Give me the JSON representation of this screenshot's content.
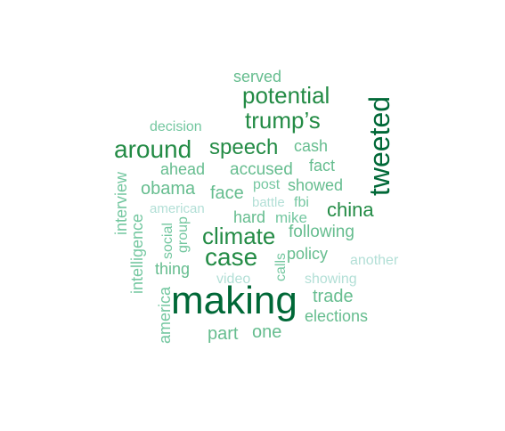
{
  "word_cloud": {
    "words": [
      {
        "text": "making",
        "size": 5,
        "color": "#006837"
      },
      {
        "text": "tweeted",
        "size": 4,
        "color": "#006837"
      },
      {
        "text": "potential",
        "size": 3,
        "color": "#238b45"
      },
      {
        "text": "trump’s",
        "size": 3,
        "color": "#238b45"
      },
      {
        "text": "around",
        "size": 3,
        "color": "#238b45"
      },
      {
        "text": "speech",
        "size": 3,
        "color": "#238b45"
      },
      {
        "text": "case",
        "size": 3,
        "color": "#238b45"
      },
      {
        "text": "climate",
        "size": 3,
        "color": "#238b45"
      },
      {
        "text": "china",
        "size": 2,
        "color": "#238b45"
      },
      {
        "text": "served",
        "size": 2,
        "color": "#66bd8f"
      },
      {
        "text": "decision",
        "size": 1,
        "color": "#74c7a0"
      },
      {
        "text": "cash",
        "size": 2,
        "color": "#66bd8f"
      },
      {
        "text": "ahead",
        "size": 2,
        "color": "#66bd8f"
      },
      {
        "text": "accused",
        "size": 2,
        "color": "#66bd8f"
      },
      {
        "text": "fact",
        "size": 2,
        "color": "#66bd8f"
      },
      {
        "text": "interview",
        "size": 2,
        "color": "#74c7a0"
      },
      {
        "text": "obama",
        "size": 2,
        "color": "#66bd8f"
      },
      {
        "text": "face",
        "size": 2,
        "color": "#66bd8f"
      },
      {
        "text": "post",
        "size": 1,
        "color": "#74c7a0"
      },
      {
        "text": "showed",
        "size": 2,
        "color": "#66bd8f"
      },
      {
        "text": "american",
        "size": 1,
        "color": "#b2dfd6"
      },
      {
        "text": "battle",
        "size": 1,
        "color": "#b2dfd6"
      },
      {
        "text": "fbi",
        "size": 1,
        "color": "#74c7a0"
      },
      {
        "text": "intelligence",
        "size": 2,
        "color": "#74c7a0"
      },
      {
        "text": "social",
        "size": 1,
        "color": "#74c7a0"
      },
      {
        "text": "group",
        "size": 1,
        "color": "#74c7a0"
      },
      {
        "text": "hard",
        "size": 2,
        "color": "#66bd8f"
      },
      {
        "text": "mike",
        "size": 2,
        "color": "#74c7a0"
      },
      {
        "text": "following",
        "size": 2,
        "color": "#66bd8f"
      },
      {
        "text": "calls",
        "size": 1,
        "color": "#74c7a0"
      },
      {
        "text": "policy",
        "size": 2,
        "color": "#66bd8f"
      },
      {
        "text": "another",
        "size": 1,
        "color": "#b2dfd6"
      },
      {
        "text": "thing",
        "size": 2,
        "color": "#66bd8f"
      },
      {
        "text": "video",
        "size": 1,
        "color": "#b2dfd6"
      },
      {
        "text": "showing",
        "size": 1,
        "color": "#b2dfd6"
      },
      {
        "text": "america",
        "size": 2,
        "color": "#74c7a0"
      },
      {
        "text": "trade",
        "size": 2,
        "color": "#66bd8f"
      },
      {
        "text": "elections",
        "size": 2,
        "color": "#66bd8f"
      },
      {
        "text": "part",
        "size": 2,
        "color": "#66bd8f"
      },
      {
        "text": "one",
        "size": 2,
        "color": "#66bd8f"
      }
    ]
  }
}
